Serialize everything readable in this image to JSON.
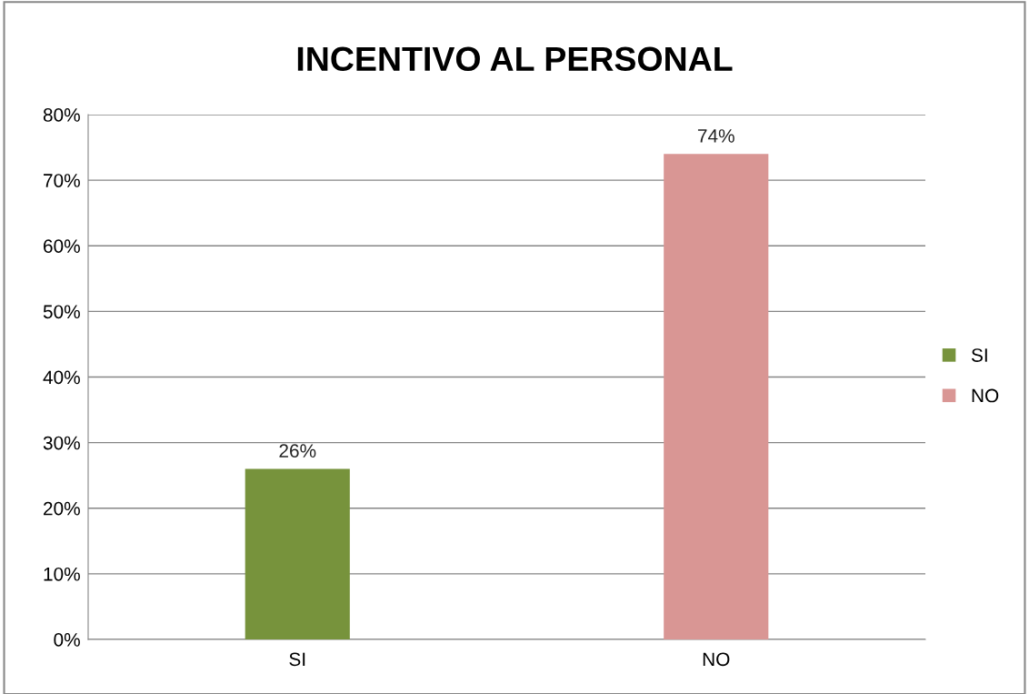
{
  "chart_data": {
    "type": "bar",
    "title": "INCENTIVO AL PERSONAL",
    "categories": [
      "SI",
      "NO"
    ],
    "series": [
      {
        "name": "SI",
        "color": "#77933c",
        "values": [
          26,
          null
        ],
        "value_labels": [
          "26%",
          null
        ]
      },
      {
        "name": "NO",
        "color": "#d99694",
        "values": [
          null,
          74
        ],
        "value_labels": [
          null,
          "74%"
        ]
      }
    ],
    "ylim": [
      0,
      80
    ],
    "yticks": [
      {
        "value": 0,
        "label": "0%"
      },
      {
        "value": 10,
        "label": "10%"
      },
      {
        "value": 20,
        "label": "20%"
      },
      {
        "value": 30,
        "label": "30%"
      },
      {
        "value": 40,
        "label": "40%"
      },
      {
        "value": 50,
        "label": "50%"
      },
      {
        "value": 60,
        "label": "60%"
      },
      {
        "value": 70,
        "label": "70%"
      },
      {
        "value": 80,
        "label": "80%"
      }
    ],
    "grid": "y",
    "legend": "right"
  }
}
